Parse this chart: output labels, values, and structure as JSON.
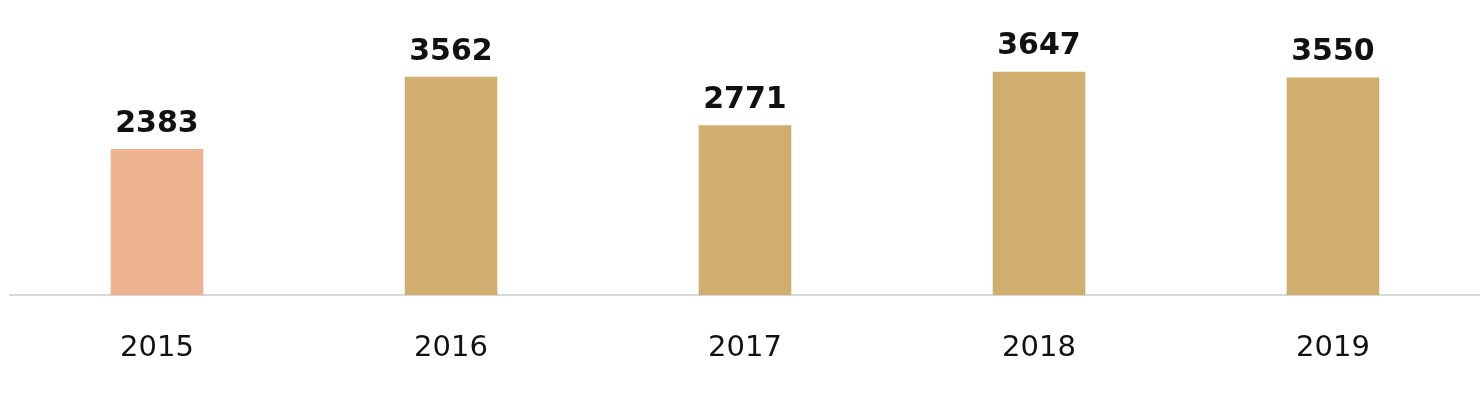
{
  "chart_data": {
    "type": "bar",
    "categories": [
      "2015",
      "2016",
      "2017",
      "2018",
      "2019"
    ],
    "values": [
      2383,
      3562,
      2771,
      3647,
      3550
    ],
    "colors": [
      "#edb391",
      "#cfae70",
      "#cfae70",
      "#cfae70",
      "#cfae70"
    ],
    "data_labels": true,
    "grid": false,
    "legend": false,
    "tick_labels": "x"
  }
}
